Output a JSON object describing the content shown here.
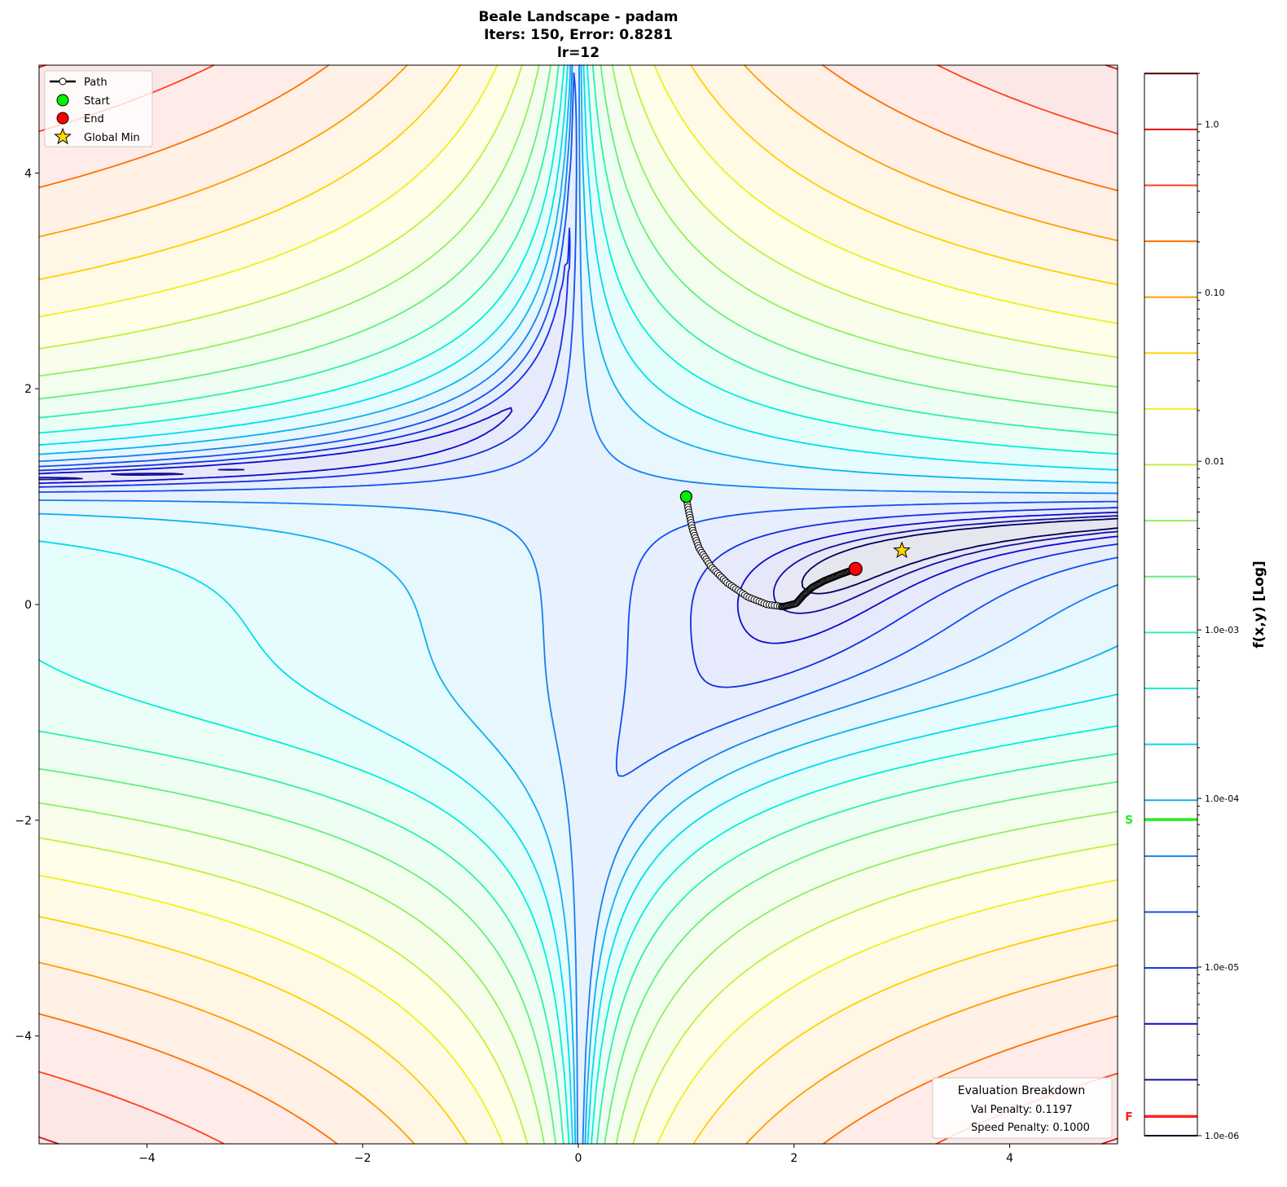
{
  "chart_data": {
    "type": "contour",
    "title_lines": [
      "Beale Landscape - padam",
      "Iters: 150, Error: 0.8281",
      "lr=12"
    ],
    "function": "beale",
    "xlim": [
      -5,
      5
    ],
    "ylim": [
      -5,
      5
    ],
    "x_ticks": [
      "−4",
      "−2",
      "0",
      "2",
      "4"
    ],
    "x_tick_values": [
      -4,
      -2,
      0,
      2,
      4
    ],
    "y_ticks": [
      "−4",
      "−2",
      "0",
      "2",
      "4"
    ],
    "y_tick_values": [
      -4,
      -2,
      0,
      2,
      4
    ],
    "normalization": "f / max f",
    "level_count": 20,
    "level_log10_range": [
      -6,
      0.3
    ],
    "level_colors": [
      "#00005a",
      "#10109a",
      "#0a0ad0",
      "#1030e0",
      "#1050f0",
      "#1580f0",
      "#10b0f0",
      "#00dcf0",
      "#00f0d8",
      "#30f0a8",
      "#60f080",
      "#90f060",
      "#c0f040",
      "#f0f020",
      "#ffd000",
      "#ffa000",
      "#ff7000",
      "#ff4020",
      "#e01010",
      "#a00000"
    ],
    "colorbar": {
      "label": "f(x,y) [Log]",
      "scale": "log",
      "range": [
        1e-06,
        2.0
      ],
      "tick_values": [
        1e-06,
        1e-05,
        0.0001,
        0.001,
        0.01,
        0.1,
        1.0
      ],
      "tick_labels": [
        "1.0e-06",
        "1.0e-05",
        "1.0e-04",
        "1.0e-03",
        "0.01",
        "0.10",
        "1.0"
      ],
      "markers": [
        {
          "label": "S",
          "value": 7.5e-05,
          "color": "#22ee22"
        },
        {
          "label": "F",
          "value": 1.3e-06,
          "color": "#ff2222"
        }
      ]
    },
    "path": {
      "iterations": 150,
      "points": [
        [
          1.0,
          1.0
        ],
        [
          1.02,
          0.88
        ],
        [
          1.06,
          0.69
        ],
        [
          1.12,
          0.52
        ],
        [
          1.23,
          0.35
        ],
        [
          1.38,
          0.2
        ],
        [
          1.57,
          0.07
        ],
        [
          1.75,
          0.0
        ],
        [
          1.9,
          -0.02
        ],
        [
          2.02,
          0.01
        ],
        [
          2.09,
          0.09
        ],
        [
          2.17,
          0.16
        ],
        [
          2.28,
          0.22
        ],
        [
          2.43,
          0.28
        ],
        [
          2.57,
          0.33
        ]
      ]
    },
    "start": {
      "x": 1.0,
      "y": 1.0,
      "color": "#00ee00"
    },
    "end": {
      "x": 2.57,
      "y": 0.33,
      "color": "#ff0000"
    },
    "global_min": {
      "x": 3.0,
      "y": 0.5,
      "color": "#ffd700"
    },
    "legend": {
      "placement": "top-left",
      "items": [
        "Path",
        "Start",
        "End",
        "Global Min"
      ]
    },
    "evaluation": {
      "title": "Evaluation Breakdown",
      "val_penalty": "Val Penalty: 0.1197",
      "speed_penalty": "Speed Penalty: 0.1000"
    }
  }
}
